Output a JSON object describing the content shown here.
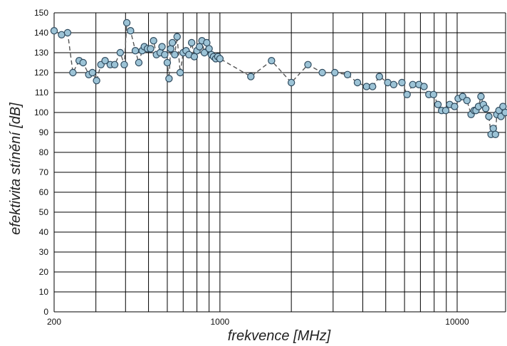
{
  "chart_data": {
    "type": "scatter",
    "title": "",
    "xlabel": "frekvence [MHz]",
    "ylabel": "efektivita stínění [dB]",
    "xscale": "log",
    "xlim": [
      200,
      16000
    ],
    "ylim": [
      0,
      150
    ],
    "y_ticks": [
      0,
      10,
      20,
      30,
      40,
      50,
      60,
      70,
      80,
      90,
      100,
      110,
      120,
      130,
      140,
      150
    ],
    "x_tick_labels": [
      {
        "value": 200,
        "label": "200"
      },
      {
        "value": 1000,
        "label": "1000"
      },
      {
        "value": 10000,
        "label": "10000"
      }
    ],
    "x_gridlines": [
      200,
      300,
      400,
      500,
      600,
      700,
      800,
      900,
      1000,
      2000,
      3000,
      4000,
      5000,
      6000,
      7000,
      8000,
      9000,
      10000
    ],
    "grid": true,
    "marker_fill": "#9cc3d6",
    "marker_edge": "#2e4a5e",
    "line_color": "#555555",
    "line_style": "dashed",
    "series": [
      {
        "x": [
          200,
          215,
          228,
          240,
          255,
          265,
          280,
          290,
          302,
          315,
          328,
          345,
          360,
          380,
          395,
          405,
          420,
          440,
          455,
          470,
          480,
          495,
          510,
          525,
          540,
          560,
          570,
          585,
          600,
          610,
          620,
          630,
          645,
          660,
          680,
          700,
          720,
          740,
          760,
          780,
          800,
          820,
          840,
          860,
          880,
          900,
          920,
          940,
          960,
          980,
          1000,
          1350,
          1650,
          2000,
          2350,
          2700,
          3050,
          3450,
          3800,
          4150,
          4400,
          4700,
          5100,
          5400,
          5850,
          6150,
          6500,
          6900,
          7250,
          7600,
          7950,
          8300,
          8600,
          8950,
          9300,
          9750,
          10100,
          10550,
          11000,
          11450,
          11800,
          12000,
          12300,
          12600,
          12900,
          13200,
          13600,
          13900,
          14200,
          14500,
          14700,
          15000,
          15300,
          15600,
          15950
        ],
        "y": [
          141,
          139,
          140,
          120,
          126,
          125,
          119,
          120,
          116,
          124,
          126,
          124,
          124,
          130,
          124,
          145,
          141,
          131,
          125,
          131,
          133,
          132,
          132,
          136,
          129,
          130,
          133,
          129,
          125,
          117,
          132,
          135,
          129,
          138,
          120,
          130,
          131,
          129,
          135,
          128,
          131,
          133,
          136,
          130,
          135,
          132,
          129,
          128,
          127,
          128,
          127,
          118,
          126,
          115,
          124,
          120,
          120,
          119,
          115,
          113,
          113,
          118,
          115,
          114,
          115,
          109,
          114,
          114,
          113,
          109,
          109,
          104,
          101,
          101,
          104,
          103,
          107,
          108,
          106,
          99,
          101,
          101,
          103,
          108,
          104,
          102,
          98,
          89,
          92,
          89,
          99,
          101,
          98,
          103,
          100
        ]
      }
    ]
  }
}
